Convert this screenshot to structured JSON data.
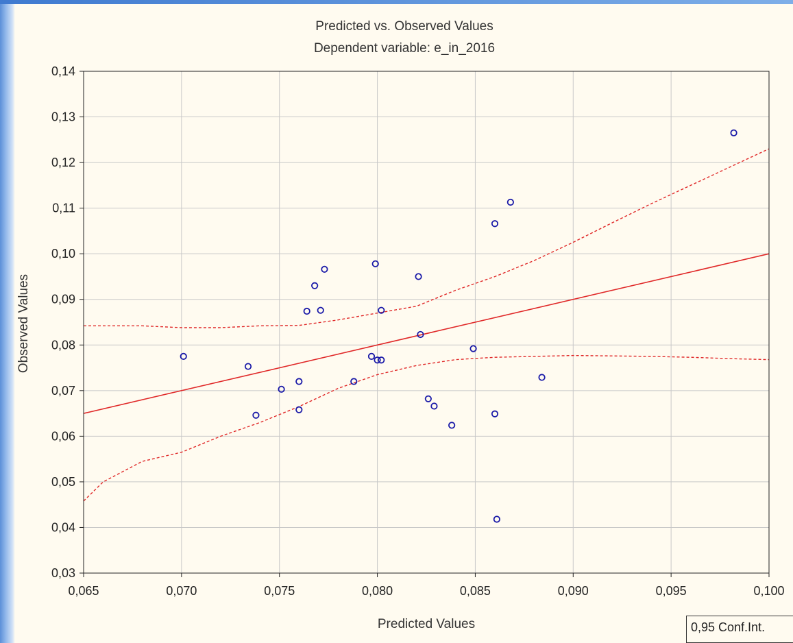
{
  "chart_data": {
    "type": "scatter",
    "title": "Predicted vs. Observed Values",
    "subtitle": "Dependent variable: e_in_2016",
    "xlabel": "Predicted Values",
    "ylabel": "Observed Values",
    "xlim": [
      0.065,
      0.1
    ],
    "ylim": [
      0.03,
      0.14
    ],
    "xticks": [
      "0,065",
      "0,070",
      "0,075",
      "0,080",
      "0,085",
      "0,090",
      "0,095",
      "0,100"
    ],
    "yticks": [
      "0,03",
      "0,04",
      "0,05",
      "0,06",
      "0,07",
      "0,08",
      "0,09",
      "0,10",
      "0,11",
      "0,12",
      "0,13",
      "0,14"
    ],
    "grid": true,
    "legend": "0,95 Conf.Int.",
    "legend_position": "bottom-right",
    "colors": {
      "points": "#1a1aa8",
      "fit_line": "#e02828",
      "background": "#fffbf0",
      "grid": "#c8c8c8"
    },
    "points": [
      {
        "x": 0.0701,
        "y": 0.0775
      },
      {
        "x": 0.0734,
        "y": 0.0753
      },
      {
        "x": 0.0738,
        "y": 0.0646
      },
      {
        "x": 0.0751,
        "y": 0.0703
      },
      {
        "x": 0.076,
        "y": 0.072
      },
      {
        "x": 0.076,
        "y": 0.0658
      },
      {
        "x": 0.0764,
        "y": 0.0874
      },
      {
        "x": 0.0768,
        "y": 0.093
      },
      {
        "x": 0.0771,
        "y": 0.0876
      },
      {
        "x": 0.0773,
        "y": 0.0966
      },
      {
        "x": 0.0788,
        "y": 0.072
      },
      {
        "x": 0.0797,
        "y": 0.0775
      },
      {
        "x": 0.0799,
        "y": 0.0978
      },
      {
        "x": 0.08,
        "y": 0.0767
      },
      {
        "x": 0.0802,
        "y": 0.0767
      },
      {
        "x": 0.0802,
        "y": 0.0876
      },
      {
        "x": 0.0821,
        "y": 0.095
      },
      {
        "x": 0.0822,
        "y": 0.0823
      },
      {
        "x": 0.0826,
        "y": 0.0682
      },
      {
        "x": 0.0829,
        "y": 0.0666
      },
      {
        "x": 0.0838,
        "y": 0.0624
      },
      {
        "x": 0.0849,
        "y": 0.0792
      },
      {
        "x": 0.086,
        "y": 0.1066
      },
      {
        "x": 0.086,
        "y": 0.0649
      },
      {
        "x": 0.0861,
        "y": 0.0418
      },
      {
        "x": 0.0868,
        "y": 0.1113
      },
      {
        "x": 0.0884,
        "y": 0.0729
      },
      {
        "x": 0.0982,
        "y": 0.1265
      }
    ],
    "fit_line": [
      {
        "x": 0.065,
        "y": 0.065
      },
      {
        "x": 0.1,
        "y": 0.1
      }
    ],
    "ci_upper": [
      {
        "x": 0.065,
        "y": 0.0842
      },
      {
        "x": 0.068,
        "y": 0.0842
      },
      {
        "x": 0.07,
        "y": 0.0838
      },
      {
        "x": 0.072,
        "y": 0.0838
      },
      {
        "x": 0.074,
        "y": 0.0842
      },
      {
        "x": 0.076,
        "y": 0.0843
      },
      {
        "x": 0.078,
        "y": 0.0855
      },
      {
        "x": 0.08,
        "y": 0.087
      },
      {
        "x": 0.082,
        "y": 0.0885
      },
      {
        "x": 0.084,
        "y": 0.092
      },
      {
        "x": 0.086,
        "y": 0.095
      },
      {
        "x": 0.088,
        "y": 0.0985
      },
      {
        "x": 0.09,
        "y": 0.1025
      },
      {
        "x": 0.092,
        "y": 0.1068
      },
      {
        "x": 0.094,
        "y": 0.111
      },
      {
        "x": 0.096,
        "y": 0.115
      },
      {
        "x": 0.098,
        "y": 0.119
      },
      {
        "x": 0.1,
        "y": 0.123
      }
    ],
    "ci_lower": [
      {
        "x": 0.065,
        "y": 0.0458
      },
      {
        "x": 0.066,
        "y": 0.05
      },
      {
        "x": 0.068,
        "y": 0.0545
      },
      {
        "x": 0.07,
        "y": 0.0565
      },
      {
        "x": 0.072,
        "y": 0.06
      },
      {
        "x": 0.074,
        "y": 0.063
      },
      {
        "x": 0.076,
        "y": 0.0665
      },
      {
        "x": 0.078,
        "y": 0.0705
      },
      {
        "x": 0.08,
        "y": 0.0735
      },
      {
        "x": 0.082,
        "y": 0.0755
      },
      {
        "x": 0.084,
        "y": 0.0768
      },
      {
        "x": 0.086,
        "y": 0.0773
      },
      {
        "x": 0.088,
        "y": 0.0775
      },
      {
        "x": 0.09,
        "y": 0.0777
      },
      {
        "x": 0.092,
        "y": 0.0776
      },
      {
        "x": 0.094,
        "y": 0.0775
      },
      {
        "x": 0.096,
        "y": 0.0773
      },
      {
        "x": 0.098,
        "y": 0.077
      },
      {
        "x": 0.1,
        "y": 0.0768
      }
    ]
  }
}
